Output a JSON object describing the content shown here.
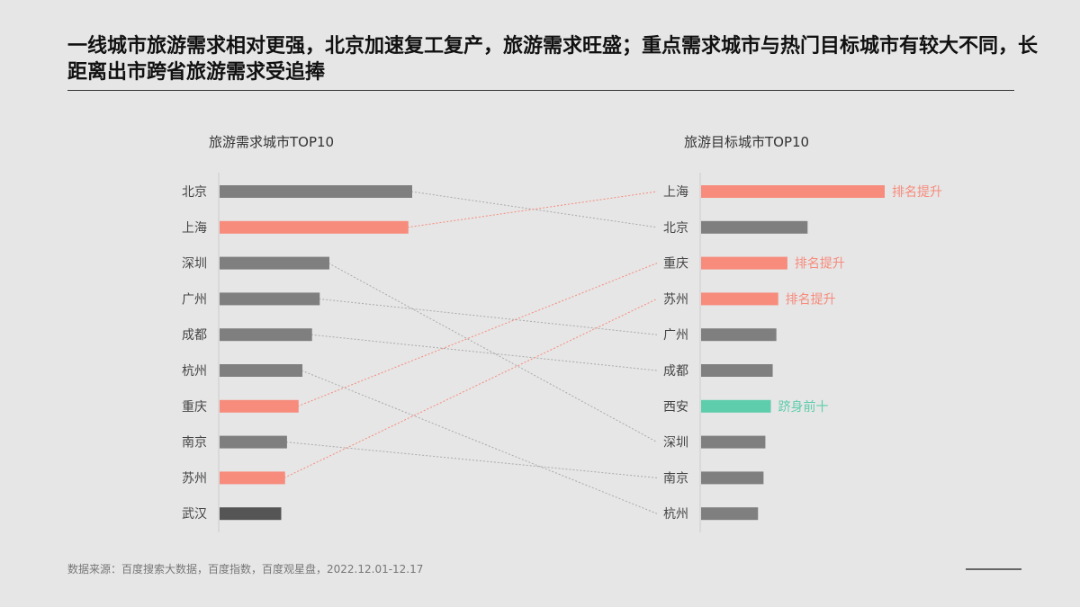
{
  "title": "一线城市旅游需求相对更强，北京加速复工复产，旅游需求旺盛；重点需求城市与热门目标城市有较大不同，长距离出市跨省旅游需求受追捧",
  "source": "数据来源：百度搜索大数据，百度指数，百度观星盘，2022.12.01-12.17",
  "colors": {
    "neutral": "#7f7f7f",
    "dark": "#555555",
    "highlight": "#f78b7c",
    "new": "#5ecdab",
    "connector": "#aaaaaa",
    "axis": "#cccccc"
  },
  "chart_data": [
    {
      "type": "bar",
      "orientation": "horizontal",
      "title": "旅游需求城市TOP10",
      "categories": [
        "北京",
        "上海",
        "深圳",
        "广州",
        "成都",
        "杭州",
        "重庆",
        "南京",
        "苏州",
        "武汉"
      ],
      "values": [
        100,
        98,
        57,
        52,
        48,
        43,
        41,
        35,
        34,
        32
      ],
      "bar_colors": [
        "neutral",
        "highlight",
        "neutral",
        "neutral",
        "neutral",
        "neutral",
        "highlight",
        "neutral",
        "highlight",
        "dark"
      ]
    },
    {
      "type": "bar",
      "orientation": "horizontal",
      "title": "旅游目标城市TOP10",
      "categories": [
        "上海",
        "北京",
        "重庆",
        "苏州",
        "广州",
        "成都",
        "西安",
        "深圳",
        "南京",
        "杭州"
      ],
      "values": [
        100,
        58,
        47,
        42,
        41,
        39,
        38,
        35,
        34,
        31
      ],
      "bar_colors": [
        "highlight",
        "neutral",
        "highlight",
        "highlight",
        "neutral",
        "neutral",
        "new",
        "neutral",
        "neutral",
        "neutral"
      ],
      "annotations": [
        "排名提升",
        "",
        "排名提升",
        "排名提升",
        "",
        "",
        "跻身前十",
        "",
        "",
        ""
      ]
    }
  ]
}
